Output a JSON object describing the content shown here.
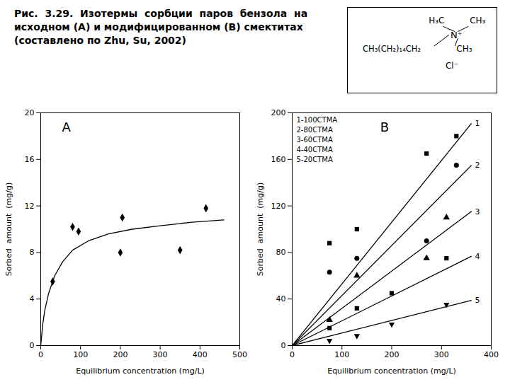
{
  "title": "Рис.  3.29.  Изотермы  сорбции  паров  бензола  на\nисходном (А) и модифицированном (В) смектитах\n(составлено по Zhu, Su, 2002)",
  "annotations": [
    "H₃C",
    "CH₃",
    "N⁺",
    "CH₃(CH₂)₁₄CH₂",
    "CH₃",
    "Cl⁻"
  ],
  "chart_data": [
    {
      "type": "scatter",
      "annotations": [
        "A"
      ],
      "xlabel": "Equilibrium concentration (mg/L)",
      "ylabel": "Sorbed  amount  (mg/g)",
      "series": [
        {
          "type": "line",
          "color": "#000000",
          "line_style": "solid",
          "x": [
            0,
            5,
            10,
            20,
            35,
            55,
            80,
            120,
            170,
            230,
            300,
            380,
            460
          ],
          "values": [
            0,
            1.8,
            3.0,
            4.5,
            6.0,
            7.2,
            8.2,
            9.0,
            9.6,
            10.0,
            10.3,
            10.6,
            10.8
          ]
        },
        {
          "type": "scatter",
          "color": "#000000",
          "marker": "diamond",
          "x": [
            30,
            80,
            95,
            200,
            205,
            350,
            415
          ],
          "values": [
            5.5,
            10.2,
            9.8,
            8.0,
            11.0,
            8.2,
            11.8
          ]
        }
      ],
      "xlim": [
        0,
        500
      ],
      "ylim": [
        0,
        20
      ],
      "xticks": [
        0,
        100,
        200,
        300,
        400,
        500
      ],
      "yticks": [
        0,
        4,
        8,
        12,
        16,
        20
      ],
      "grid": false
    },
    {
      "type": "scatter",
      "annotations": [
        "B"
      ],
      "xlabel": "Equilibrium concentration (mg/L)",
      "ylabel": "Sorbed  amount  (mg/g)",
      "legend": "top-left",
      "series": [
        {
          "name": "1-100CTMA",
          "type": "scatter",
          "color": "#000000",
          "marker": "square",
          "x": [
            75,
            130,
            270,
            330
          ],
          "values": [
            88,
            100,
            165,
            180
          ]
        },
        {
          "name": "2-80CTMA",
          "type": "scatter",
          "color": "#000000",
          "marker": "circle",
          "x": [
            75,
            130,
            270,
            330
          ],
          "values": [
            63,
            75,
            90,
            155
          ]
        },
        {
          "name": "3-60CTMA",
          "type": "scatter",
          "color": "#000000",
          "marker": "triangle",
          "x": [
            75,
            130,
            270,
            310
          ],
          "values": [
            22,
            60,
            75,
            110
          ]
        },
        {
          "name": "4-40CTMA",
          "type": "scatter",
          "color": "#000000",
          "marker": "square",
          "x": [
            75,
            130,
            200,
            310
          ],
          "values": [
            15,
            32,
            45,
            75
          ]
        },
        {
          "name": "5-20CTMA",
          "type": "scatter",
          "color": "#000000",
          "marker": "triangle-down",
          "x": [
            75,
            130,
            200,
            310
          ],
          "values": [
            4,
            8,
            18,
            35
          ]
        },
        {
          "name": "1",
          "type": "line",
          "color": "#000000",
          "line_style": "solid",
          "x": [
            0,
            360
          ],
          "values": [
            0,
            190.8
          ]
        },
        {
          "name": "2",
          "type": "line",
          "color": "#000000",
          "line_style": "solid",
          "x": [
            0,
            360
          ],
          "values": [
            0,
            154.8
          ]
        },
        {
          "name": "3",
          "type": "line",
          "color": "#000000",
          "line_style": "solid",
          "x": [
            0,
            360
          ],
          "values": [
            0,
            115.2
          ]
        },
        {
          "name": "4",
          "type": "line",
          "color": "#000000",
          "line_style": "solid",
          "x": [
            0,
            360
          ],
          "values": [
            0,
            76.68
          ]
        },
        {
          "name": "5",
          "type": "line",
          "color": "#000000",
          "line_style": "solid",
          "x": [
            0,
            360
          ],
          "values": [
            0,
            38.88
          ]
        }
      ],
      "xlim": [
        0,
        400
      ],
      "ylim": [
        0,
        200
      ],
      "xticks": [
        0,
        100,
        200,
        300,
        400
      ],
      "yticks": [
        0,
        40,
        80,
        120,
        160,
        200
      ],
      "grid": false
    }
  ]
}
